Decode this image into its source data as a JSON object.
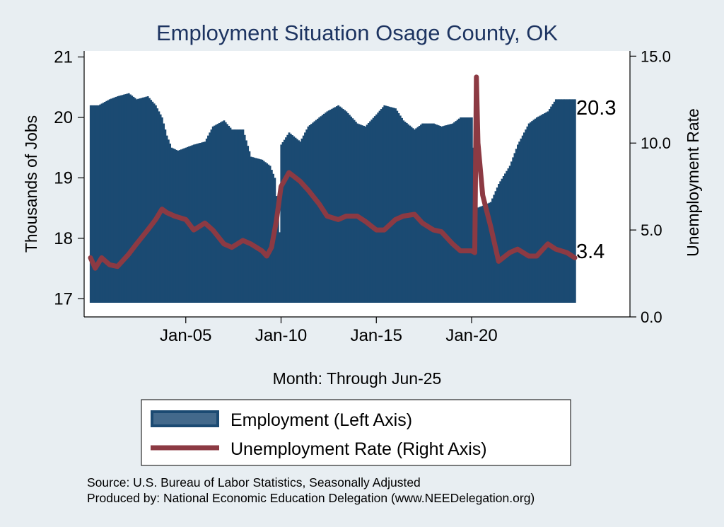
{
  "chart_data": {
    "type": "bar+line",
    "title": "Employment Situation Osage  County, OK",
    "xlabel": "Month: Through Jun-25",
    "ylabel_left": "Thousands of Jobs",
    "ylabel_right": "Unemployment Rate",
    "ylim_left": [
      16.7,
      21.1
    ],
    "ylim_right": [
      0,
      15.3
    ],
    "yticks_left": [
      "17",
      "18",
      "19",
      "20",
      "21"
    ],
    "yticks_right": [
      "0.0",
      "5.0",
      "10.0",
      "15.0"
    ],
    "xticks": [
      "Jan-05",
      "Jan-10",
      "Jan-15",
      "Jan-20"
    ],
    "grid": false,
    "legend_position": "bottom",
    "colors": {
      "employment": "#1b4a72",
      "unemployment": "#8c3a43",
      "background": "#e8eef2",
      "plot_bg": "#ffffff",
      "title": "#1d3461"
    },
    "series": [
      {
        "name": "Employment (Left Axis)",
        "kind": "bar",
        "axis": "left",
        "end_label": "20.3",
        "points": [
          [
            "2000-01",
            20.2
          ],
          [
            "2000-06",
            20.2
          ],
          [
            "2001-01",
            20.3
          ],
          [
            "2001-06",
            20.35
          ],
          [
            "2002-01",
            20.4
          ],
          [
            "2002-06",
            20.3
          ],
          [
            "2003-01",
            20.35
          ],
          [
            "2003-06",
            20.2
          ],
          [
            "2003-10",
            20.0
          ],
          [
            "2004-01",
            19.7
          ],
          [
            "2004-04",
            19.5
          ],
          [
            "2004-08",
            19.45
          ],
          [
            "2005-01",
            19.5
          ],
          [
            "2005-06",
            19.55
          ],
          [
            "2006-01",
            19.6
          ],
          [
            "2006-06",
            19.85
          ],
          [
            "2007-01",
            19.95
          ],
          [
            "2007-06",
            19.8
          ],
          [
            "2008-01",
            19.8
          ],
          [
            "2008-06",
            19.35
          ],
          [
            "2009-01",
            19.3
          ],
          [
            "2009-06",
            19.2
          ],
          [
            "2009-09",
            19.0
          ],
          [
            "2009-12",
            18.1
          ],
          [
            "2010-01",
            19.55
          ],
          [
            "2010-06",
            19.75
          ],
          [
            "2011-01",
            19.6
          ],
          [
            "2011-06",
            19.85
          ],
          [
            "2012-01",
            20.0
          ],
          [
            "2012-06",
            20.1
          ],
          [
            "2013-01",
            20.2
          ],
          [
            "2013-06",
            20.1
          ],
          [
            "2014-01",
            19.9
          ],
          [
            "2014-06",
            19.85
          ],
          [
            "2015-01",
            20.05
          ],
          [
            "2015-06",
            20.2
          ],
          [
            "2016-01",
            20.15
          ],
          [
            "2016-06",
            19.95
          ],
          [
            "2017-01",
            19.8
          ],
          [
            "2017-06",
            19.9
          ],
          [
            "2018-01",
            19.9
          ],
          [
            "2018-06",
            19.85
          ],
          [
            "2019-01",
            19.9
          ],
          [
            "2019-06",
            20.0
          ],
          [
            "2020-01",
            20.0
          ],
          [
            "2020-04",
            18.5
          ],
          [
            "2020-09",
            18.55
          ],
          [
            "2021-01",
            18.6
          ],
          [
            "2021-06",
            18.9
          ],
          [
            "2022-01",
            19.2
          ],
          [
            "2022-06",
            19.55
          ],
          [
            "2023-01",
            19.9
          ],
          [
            "2023-06",
            20.0
          ],
          [
            "2024-01",
            20.1
          ],
          [
            "2024-06",
            20.3
          ],
          [
            "2025-06",
            20.3
          ]
        ]
      },
      {
        "name": "Unemployment Rate (Right Axis)",
        "kind": "line",
        "axis": "right",
        "end_label": "3.4",
        "points": [
          [
            "2000-01",
            3.4
          ],
          [
            "2000-04",
            2.8
          ],
          [
            "2000-08",
            3.4
          ],
          [
            "2001-01",
            3.0
          ],
          [
            "2001-06",
            2.9
          ],
          [
            "2002-01",
            3.6
          ],
          [
            "2002-06",
            4.2
          ],
          [
            "2003-01",
            5.0
          ],
          [
            "2003-06",
            5.6
          ],
          [
            "2003-10",
            6.2
          ],
          [
            "2004-01",
            6.0
          ],
          [
            "2004-06",
            5.8
          ],
          [
            "2005-01",
            5.6
          ],
          [
            "2005-06",
            5.0
          ],
          [
            "2006-01",
            5.4
          ],
          [
            "2006-06",
            5.0
          ],
          [
            "2007-01",
            4.2
          ],
          [
            "2007-06",
            4.0
          ],
          [
            "2008-01",
            4.4
          ],
          [
            "2008-06",
            4.2
          ],
          [
            "2009-01",
            3.8
          ],
          [
            "2009-04",
            3.5
          ],
          [
            "2009-07",
            4.0
          ],
          [
            "2009-10",
            5.5
          ],
          [
            "2010-01",
            7.5
          ],
          [
            "2010-06",
            8.3
          ],
          [
            "2011-01",
            7.8
          ],
          [
            "2011-06",
            7.3
          ],
          [
            "2012-01",
            6.5
          ],
          [
            "2012-06",
            5.8
          ],
          [
            "2013-01",
            5.6
          ],
          [
            "2013-06",
            5.8
          ],
          [
            "2014-01",
            5.8
          ],
          [
            "2014-06",
            5.5
          ],
          [
            "2015-01",
            5.0
          ],
          [
            "2015-06",
            5.0
          ],
          [
            "2016-01",
            5.6
          ],
          [
            "2016-06",
            5.8
          ],
          [
            "2017-01",
            5.9
          ],
          [
            "2017-06",
            5.4
          ],
          [
            "2018-01",
            5.0
          ],
          [
            "2018-06",
            4.9
          ],
          [
            "2019-01",
            4.2
          ],
          [
            "2019-06",
            3.8
          ],
          [
            "2020-01",
            3.8
          ],
          [
            "2020-03",
            3.7
          ],
          [
            "2020-04",
            13.8
          ],
          [
            "2020-05",
            10.0
          ],
          [
            "2020-08",
            7.0
          ],
          [
            "2021-01",
            5.2
          ],
          [
            "2021-06",
            3.2
          ],
          [
            "2022-01",
            3.7
          ],
          [
            "2022-06",
            3.9
          ],
          [
            "2023-01",
            3.5
          ],
          [
            "2023-06",
            3.5
          ],
          [
            "2024-01",
            4.2
          ],
          [
            "2024-06",
            3.9
          ],
          [
            "2025-01",
            3.7
          ],
          [
            "2025-06",
            3.4
          ]
        ]
      }
    ]
  },
  "legend": {
    "employment": "Employment (Left Axis)",
    "unemployment": "Unemployment Rate (Right Axis)"
  },
  "source": "Source: U.S. Bureau of Labor Statistics, Seasonally Adjusted",
  "produced_by": "Produced by: National Economic Education Delegation (www.NEEDelegation.org)"
}
